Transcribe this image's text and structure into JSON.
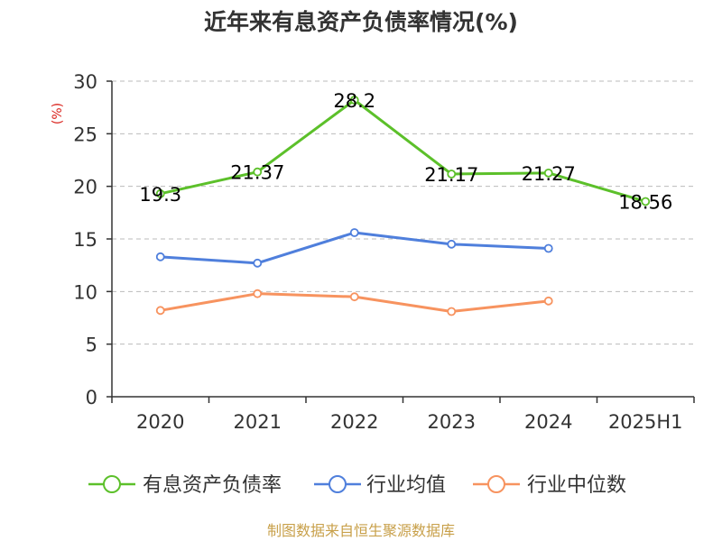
{
  "chart_data": {
    "type": "line",
    "title": "近年来有息资产负债率情况(%)",
    "ylabel": "(%)",
    "xlabel": "",
    "categories": [
      "2020",
      "2021",
      "2022",
      "2023",
      "2024",
      "2025H1"
    ],
    "ylim": [
      0,
      30
    ],
    "yticks": [
      0,
      5,
      10,
      15,
      20,
      25,
      30
    ],
    "grid": true,
    "legend_position": "bottom",
    "series": [
      {
        "name": "有息资产负债率",
        "values": [
          19.3,
          21.37,
          28.2,
          21.17,
          21.27,
          18.56
        ],
        "color": "#5cc02a",
        "labels": [
          "19.3",
          "21.37",
          "28.2",
          "21.17",
          "21.27",
          "18.56"
        ]
      },
      {
        "name": "行业均值",
        "values": [
          13.3,
          12.7,
          15.6,
          14.5,
          14.1,
          null
        ],
        "color": "#4f7fdc"
      },
      {
        "name": "行业中位数",
        "values": [
          8.2,
          9.8,
          9.5,
          8.1,
          9.1,
          null
        ],
        "color": "#f7935f"
      }
    ]
  },
  "source": "制图数据来自恒生聚源数据库",
  "colors": {
    "title": "#333333",
    "axis": "#333333",
    "grid": "#bbbbbb",
    "ylabel": "#d9221c",
    "source": "#c8a04a"
  }
}
